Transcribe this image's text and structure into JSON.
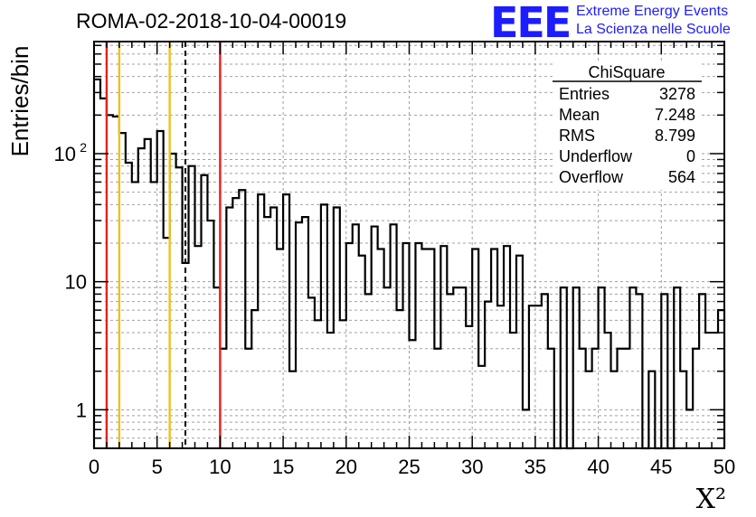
{
  "header": {
    "title": "ROMA-02-2018-10-04-00019",
    "logo_text": "EEE",
    "brand_line1": "Extreme Energy Events",
    "brand_line2": "La Scienza nelle Scuole"
  },
  "colors": {
    "brand_blue": "#1c1cff",
    "red_line": "#e8201c",
    "yellow_line": "#f0c020",
    "histogram": "#000000",
    "grid": "#a0a0a0"
  },
  "stats_box": {
    "title": "ChiSquare",
    "rows": [
      {
        "label": "Entries",
        "value": "3278"
      },
      {
        "label": "Mean",
        "value": "7.248"
      },
      {
        "label": "RMS",
        "value": "8.799"
      },
      {
        "label": "Underflow",
        "value": "0"
      },
      {
        "label": "Overflow",
        "value": "564"
      }
    ]
  },
  "chart_data": {
    "type": "histogram",
    "title": "ROMA-02-2018-10-04-00019",
    "xlabel": "X²",
    "ylabel": "Entries/bin",
    "xlim": [
      0,
      50
    ],
    "ylim": [
      0.5,
      750
    ],
    "yscale": "log",
    "bin_width": 0.5,
    "grid": true,
    "x_ticks": [
      "0",
      "5",
      "10",
      "15",
      "20",
      "25",
      "30",
      "35",
      "40",
      "45",
      "50"
    ],
    "y_ticks": [
      {
        "value": 1,
        "label": "1"
      },
      {
        "value": 10,
        "label": "10"
      },
      {
        "value": 100,
        "label": "10",
        "exponent": "2"
      }
    ],
    "bin_counts": [
      380,
      270,
      200,
      195,
      145,
      85,
      60,
      110,
      130,
      60,
      150,
      22,
      100,
      78,
      14,
      80,
      19,
      68,
      30,
      9,
      3,
      38,
      45,
      52,
      3,
      6,
      48,
      32,
      38,
      18,
      48,
      2,
      29,
      32,
      7.5,
      5,
      40,
      4,
      38,
      5,
      20,
      28,
      16,
      8,
      27,
      18,
      9,
      28,
      6,
      20,
      3.5,
      20,
      18,
      18,
      3,
      19,
      8,
      9,
      9,
      4.5,
      18,
      2.2,
      7,
      18,
      6.5,
      19,
      4,
      16,
      1,
      6.5,
      6.5,
      8,
      3,
      0,
      9,
      0,
      9,
      3,
      2,
      3,
      9,
      4,
      2,
      3,
      3,
      9,
      8,
      0,
      2,
      0,
      8,
      0,
      9,
      2,
      1,
      3,
      8,
      4,
      4,
      6
    ],
    "vertical_lines": [
      {
        "x": 1,
        "style": "solid",
        "color": "red"
      },
      {
        "x": 2,
        "style": "solid",
        "color": "yellow"
      },
      {
        "x": 6,
        "style": "solid",
        "color": "yellow"
      },
      {
        "x": 7.248,
        "style": "dashed",
        "color": "black"
      },
      {
        "x": 10,
        "style": "solid",
        "color": "red"
      }
    ]
  }
}
